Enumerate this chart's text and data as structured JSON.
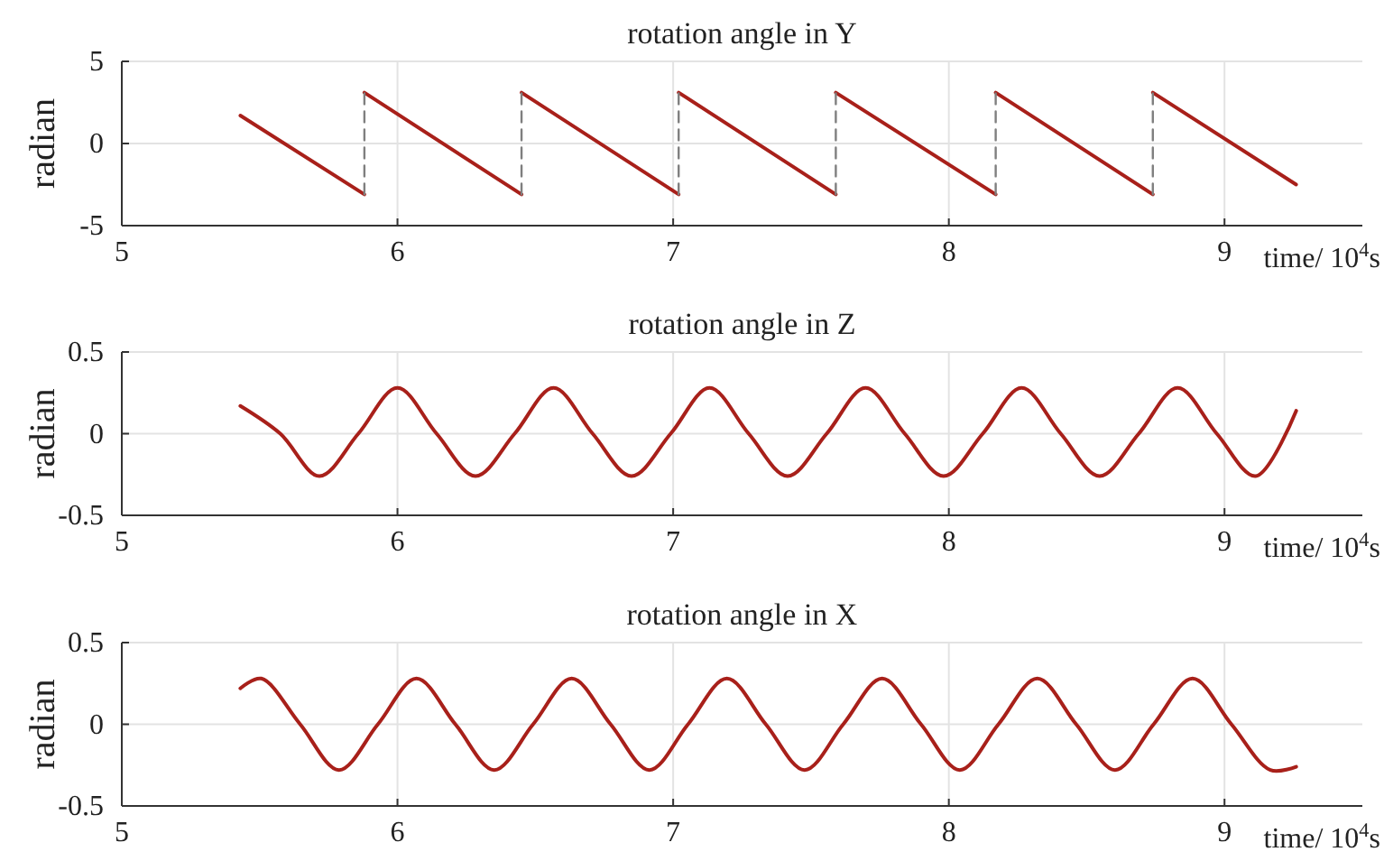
{
  "chart_data": [
    {
      "type": "line",
      "title": "rotation angle in Y",
      "xlabel": "time/ 10$^{4}$s",
      "ylabel": "radian",
      "xlim": [
        5,
        9.5
      ],
      "xticks": [
        5,
        6,
        7,
        8,
        9
      ],
      "ylim": [
        -5,
        5
      ],
      "yticks": [
        -5,
        0,
        5
      ],
      "grid": true,
      "series": [
        {
          "color": "#a8201a",
          "line_style": "solid",
          "x": [
            5.43,
            5.88
          ],
          "values": [
            1.7,
            -3.1
          ]
        },
        {
          "color": "#a8201a",
          "line_style": "solid",
          "x": [
            5.88,
            6.45
          ],
          "values": [
            3.1,
            -3.1
          ]
        },
        {
          "color": "#a8201a",
          "line_style": "solid",
          "x": [
            6.45,
            7.02
          ],
          "values": [
            3.1,
            -3.1
          ]
        },
        {
          "color": "#a8201a",
          "line_style": "solid",
          "x": [
            7.02,
            7.59
          ],
          "values": [
            3.1,
            -3.1
          ]
        },
        {
          "color": "#a8201a",
          "line_style": "solid",
          "x": [
            7.59,
            8.17
          ],
          "values": [
            3.1,
            -3.1
          ]
        },
        {
          "color": "#a8201a",
          "line_style": "solid",
          "x": [
            8.17,
            8.74
          ],
          "values": [
            3.1,
            -3.1
          ]
        },
        {
          "color": "#a8201a",
          "line_style": "solid",
          "x": [
            8.74,
            9.26
          ],
          "values": [
            3.1,
            -2.5
          ]
        },
        {
          "color": "#7f7f7f",
          "line_style": "dashed",
          "x": [
            5.88,
            5.88
          ],
          "values": [
            -3.1,
            3.1
          ]
        },
        {
          "color": "#7f7f7f",
          "line_style": "dashed",
          "x": [
            6.45,
            6.45
          ],
          "values": [
            -3.1,
            3.1
          ]
        },
        {
          "color": "#7f7f7f",
          "line_style": "dashed",
          "x": [
            7.02,
            7.02
          ],
          "values": [
            -3.1,
            3.1
          ]
        },
        {
          "color": "#7f7f7f",
          "line_style": "dashed",
          "x": [
            7.59,
            7.59
          ],
          "values": [
            -3.1,
            3.1
          ]
        },
        {
          "color": "#7f7f7f",
          "line_style": "dashed",
          "x": [
            8.17,
            8.17
          ],
          "values": [
            -3.1,
            3.1
          ]
        },
        {
          "color": "#7f7f7f",
          "line_style": "dashed",
          "x": [
            8.74,
            8.74
          ],
          "values": [
            -3.1,
            3.1
          ]
        }
      ]
    },
    {
      "type": "line",
      "title": "rotation angle in Z",
      "xlabel": "time/ 10$^{4}$s",
      "ylabel": "radian",
      "xlim": [
        5,
        9.5
      ],
      "xticks": [
        5,
        6,
        7,
        8,
        9
      ],
      "ylim": [
        -0.5,
        0.5
      ],
      "yticks": [
        -0.5,
        0,
        0.5
      ],
      "grid": true,
      "series": [
        {
          "color": "#a8201a",
          "line_style": "solid",
          "x": [
            5.43,
            5.575,
            5.717,
            5.858,
            6.0,
            6.142,
            6.283,
            6.425,
            6.566,
            6.708,
            6.849,
            6.991,
            7.132,
            7.274,
            7.415,
            7.557,
            7.698,
            7.84,
            7.981,
            8.123,
            8.264,
            8.406,
            8.547,
            8.689,
            8.83,
            8.972,
            9.113,
            9.26
          ],
          "values": [
            0.17,
            0,
            -0.26,
            0,
            0.28,
            0,
            -0.26,
            0,
            0.28,
            0,
            -0.26,
            0,
            0.28,
            0,
            -0.26,
            0,
            0.28,
            0,
            -0.26,
            0,
            0.28,
            0,
            -0.26,
            0,
            0.28,
            0,
            -0.26,
            0.14
          ]
        }
      ]
    },
    {
      "type": "line",
      "title": "rotation angle in X",
      "xlabel": "time/ 10$^{4}$s",
      "ylabel": "radian",
      "xlim": [
        5,
        9.5
      ],
      "xticks": [
        5,
        6,
        7,
        8,
        9
      ],
      "ylim": [
        -0.5,
        0.5
      ],
      "yticks": [
        -0.5,
        0,
        0.5
      ],
      "grid": true,
      "series": [
        {
          "color": "#a8201a",
          "line_style": "solid",
          "x": [
            5.43,
            5.506,
            5.647,
            5.788,
            5.929,
            6.069,
            6.21,
            6.351,
            6.492,
            6.632,
            6.773,
            6.914,
            7.054,
            7.195,
            7.336,
            7.477,
            7.617,
            7.758,
            7.899,
            8.04,
            8.18,
            8.321,
            8.462,
            8.603,
            8.743,
            8.884,
            9.025,
            9.166,
            9.26
          ],
          "values": [
            0.22,
            0.28,
            0,
            -0.28,
            0,
            0.28,
            0,
            -0.28,
            0,
            0.28,
            0,
            -0.28,
            0,
            0.28,
            0,
            -0.28,
            0,
            0.28,
            0,
            -0.28,
            0,
            0.28,
            0,
            -0.28,
            0,
            0.28,
            0,
            -0.28,
            -0.26
          ]
        }
      ]
    }
  ]
}
